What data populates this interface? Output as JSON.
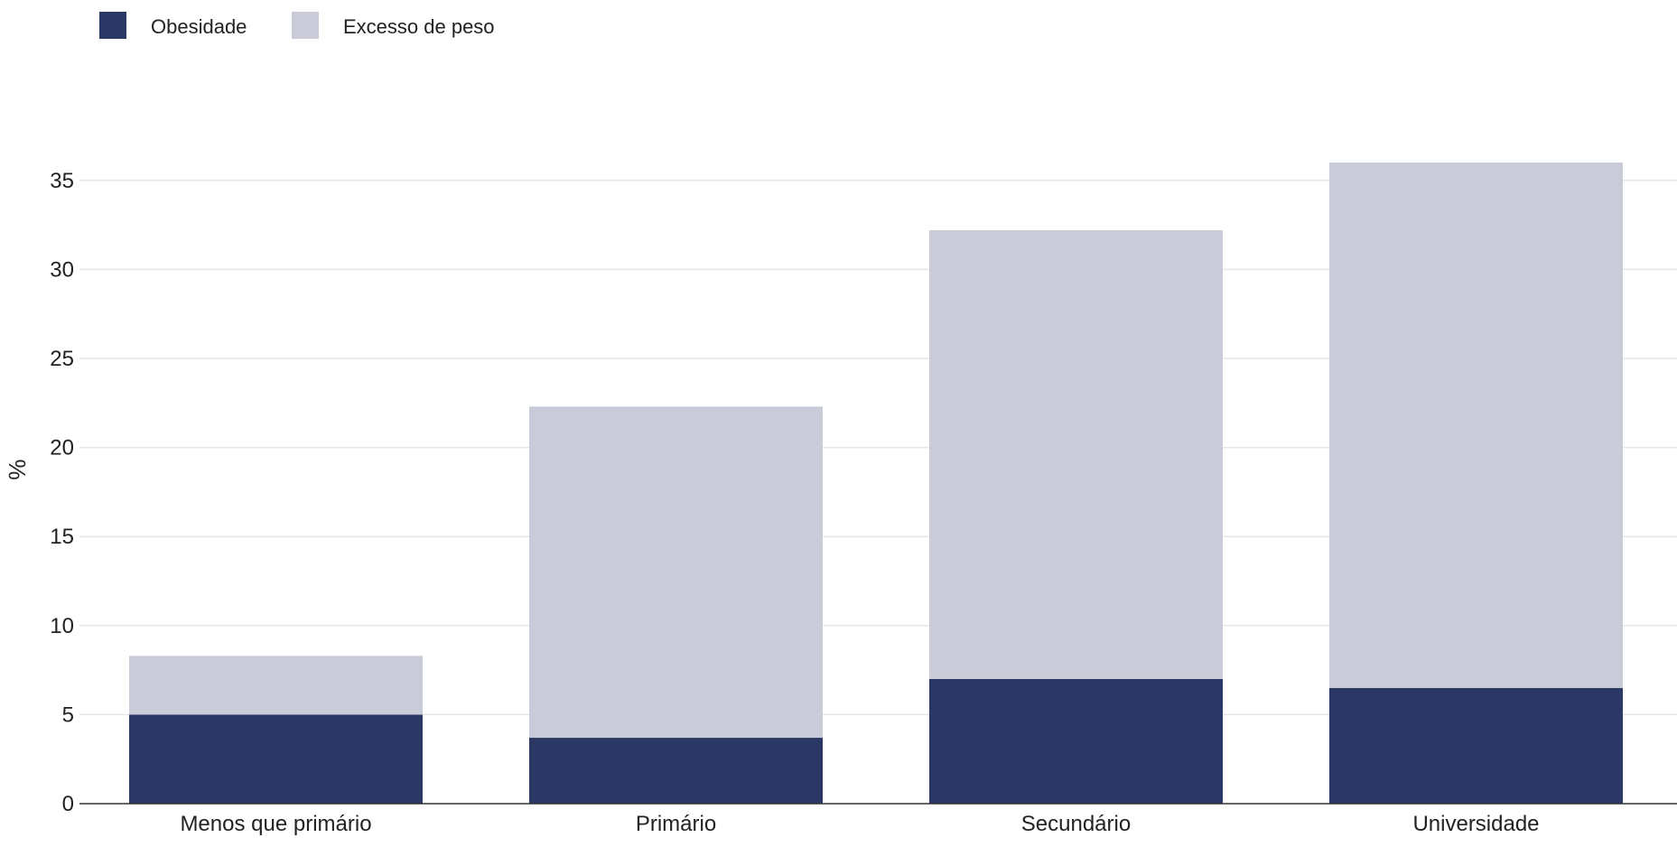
{
  "chart_data": {
    "type": "bar",
    "stacked": true,
    "title": "",
    "xlabel": "",
    "ylabel": "%",
    "ylim": [
      0,
      37
    ],
    "yticks": [
      0,
      5,
      10,
      15,
      20,
      25,
      30,
      35
    ],
    "grid": true,
    "legend": "top-left",
    "categories": [
      "Menos que primário",
      "Primário",
      "Secundário",
      "Universidade"
    ],
    "series": [
      {
        "name": "Obesidade",
        "color": "#2b3765",
        "values": [
          5.0,
          3.7,
          7.0,
          6.5
        ]
      },
      {
        "name": "Excesso de peso",
        "color": "#c9ccd8",
        "values": [
          3.3,
          18.6,
          25.2,
          29.5
        ]
      }
    ]
  }
}
